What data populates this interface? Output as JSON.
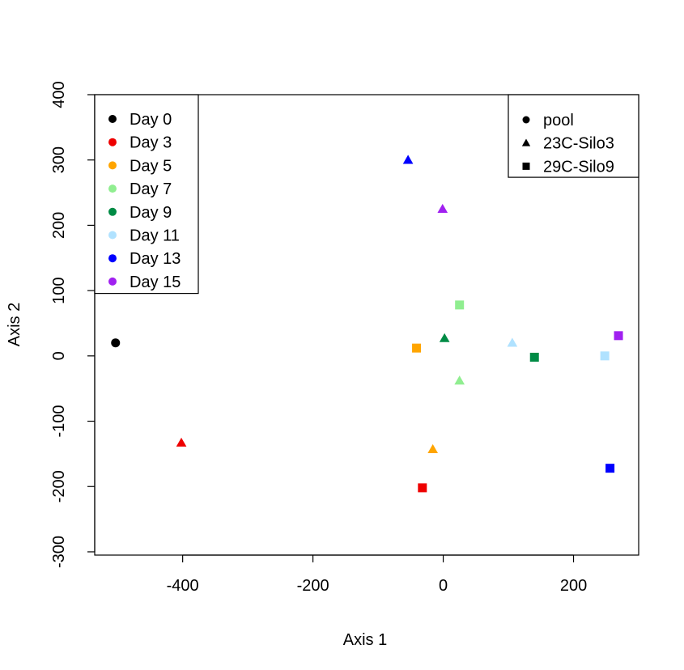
{
  "chart_data": {
    "type": "scatter",
    "title": "",
    "xlabel": "Axis 1",
    "ylabel": "Axis 2",
    "xlim": [
      -535,
      300
    ],
    "ylim": [
      -305,
      400
    ],
    "xticks": [
      -400,
      -200,
      0,
      200
    ],
    "yticks": [
      -300,
      -200,
      -100,
      0,
      100,
      200,
      300,
      400
    ],
    "grid": false,
    "day_legend": {
      "placement": "top-left",
      "entries": [
        {
          "label": "Day 0",
          "color": "#000000"
        },
        {
          "label": "Day 3",
          "color": "#ee0000"
        },
        {
          "label": "Day 5",
          "color": "#ffa500"
        },
        {
          "label": "Day 7",
          "color": "#90ee90"
        },
        {
          "label": "Day 9",
          "color": "#008b45"
        },
        {
          "label": "Day 11",
          "color": "#b0e2ff"
        },
        {
          "label": "Day 13",
          "color": "#0000ff"
        },
        {
          "label": "Day 15",
          "color": "#a020f0"
        }
      ]
    },
    "shape_legend": {
      "placement": "top-right",
      "entries": [
        {
          "label": "pool",
          "shape": "circle"
        },
        {
          "label": "23C-Silo3",
          "shape": "triangle"
        },
        {
          "label": "29C-Silo9",
          "shape": "square"
        }
      ]
    },
    "points": [
      {
        "day": "Day 0",
        "group": "pool",
        "x": -503,
        "y": 20
      },
      {
        "day": "Day 3",
        "group": "23C-Silo3",
        "x": -402,
        "y": -133
      },
      {
        "day": "Day 3",
        "group": "29C-Silo9",
        "x": -32,
        "y": -202
      },
      {
        "day": "Day 5",
        "group": "23C-Silo3",
        "x": -16,
        "y": -143
      },
      {
        "day": "Day 5",
        "group": "29C-Silo9",
        "x": -41,
        "y": 12
      },
      {
        "day": "Day 7",
        "group": "29C-Silo9",
        "x": 25,
        "y": 78
      },
      {
        "day": "Day 7",
        "group": "23C-Silo3",
        "x": 25,
        "y": -38
      },
      {
        "day": "Day 9",
        "group": "23C-Silo3",
        "x": 2,
        "y": 27
      },
      {
        "day": "Day 9",
        "group": "29C-Silo9",
        "x": 140,
        "y": -2
      },
      {
        "day": "Day 11",
        "group": "23C-Silo3",
        "x": 106,
        "y": 20
      },
      {
        "day": "Day 11",
        "group": "29C-Silo9",
        "x": 248,
        "y": 0
      },
      {
        "day": "Day 13",
        "group": "23C-Silo3",
        "x": -54,
        "y": 300
      },
      {
        "day": "Day 13",
        "group": "29C-Silo9",
        "x": 256,
        "y": -172
      },
      {
        "day": "Day 15",
        "group": "23C-Silo3",
        "x": -1,
        "y": 225
      },
      {
        "day": "Day 15",
        "group": "29C-Silo9",
        "x": 269,
        "y": 31
      }
    ]
  }
}
